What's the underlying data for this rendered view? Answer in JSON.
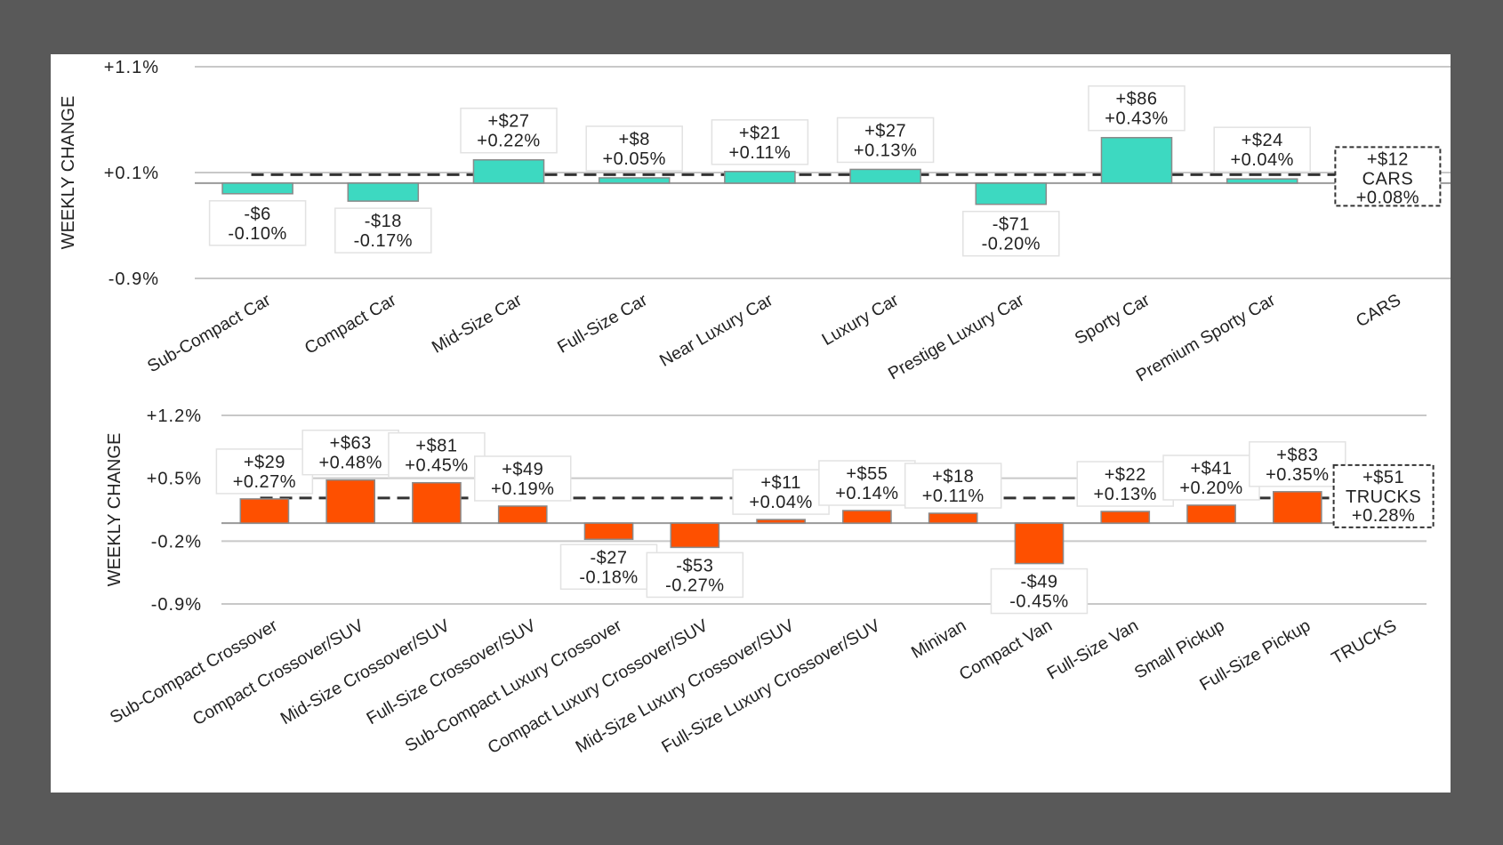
{
  "chart_data": [
    {
      "type": "bar",
      "title": "",
      "ylabel": "WEEKLY CHANGE",
      "xlabel": "",
      "ylim": [
        -0.9,
        1.1
      ],
      "yticks": [
        1.1,
        0.1,
        -0.9
      ],
      "ytick_labels": [
        "+1.1%",
        "+0.1%",
        "-0.9%"
      ],
      "grid": true,
      "bar_color": "#3dd9c1",
      "categories": [
        "Sub-Compact Car",
        "Compact Car",
        "Mid-Size Car",
        "Full-Size Car",
        "Near Luxury Car",
        "Luxury Car",
        "Prestige Luxury Car",
        "Sporty Car",
        "Premium Sporty Car",
        "CARS"
      ],
      "values": [
        -0.1,
        -0.17,
        0.22,
        0.05,
        0.11,
        0.13,
        -0.2,
        0.43,
        0.04,
        null
      ],
      "dollar_labels": [
        "-$6",
        "-$18",
        "+$27",
        "+$8",
        "+$21",
        "+$27",
        "-$71",
        "+$86",
        "+$24",
        "+$12"
      ],
      "pct_labels": [
        "-0.10%",
        "-0.17%",
        "+0.22%",
        "+0.05%",
        "+0.11%",
        "+0.13%",
        "-0.20%",
        "+0.43%",
        "+0.04%",
        "+0.08%"
      ],
      "average": {
        "label": "CARS",
        "value": 0.08,
        "dollar": "+$12",
        "pct": "+0.08%",
        "style": "dashed"
      }
    },
    {
      "type": "bar",
      "title": "",
      "ylabel": "WEEKLY CHANGE",
      "xlabel": "",
      "ylim": [
        -0.9,
        1.2
      ],
      "yticks": [
        1.2,
        0.5,
        -0.2,
        -0.9
      ],
      "ytick_labels": [
        "+1.2%",
        "+0.5%",
        "-0.2%",
        "-0.9%"
      ],
      "grid": true,
      "bar_color": "#fe5000",
      "categories": [
        "Sub-Compact Crossover",
        "Compact Crossover/SUV",
        "Mid-Size Crossover/SUV",
        "Full-Size Crossover/SUV",
        "Sub-Compact Luxury Crossover",
        "Compact Luxury Crossover/SUV",
        "Mid-Size Luxury Crossover/SUV",
        "Full-Size Luxury Crossover/SUV",
        "Minivan",
        "Compact Van",
        "Full-Size Van",
        "Small Pickup",
        "Full-Size Pickup",
        "TRUCKS"
      ],
      "values": [
        0.27,
        0.48,
        0.45,
        0.19,
        -0.18,
        -0.27,
        0.04,
        0.14,
        0.11,
        -0.45,
        0.13,
        0.2,
        0.35,
        null
      ],
      "dollar_labels": [
        "+$29",
        "+$63",
        "+$81",
        "+$49",
        "-$27",
        "-$53",
        "+$11",
        "+$55",
        "+$18",
        "-$49",
        "+$22",
        "+$41",
        "+$83",
        "+$51"
      ],
      "pct_labels": [
        "+0.27%",
        "+0.48%",
        "+0.45%",
        "+0.19%",
        "-0.18%",
        "-0.27%",
        "+0.04%",
        "+0.14%",
        "+0.11%",
        "-0.45%",
        "+0.13%",
        "+0.20%",
        "+0.35%",
        "+0.28%"
      ],
      "average": {
        "label": "TRUCKS",
        "value": 0.28,
        "dollar": "+$51",
        "pct": "+0.28%",
        "style": "dashed"
      }
    }
  ]
}
